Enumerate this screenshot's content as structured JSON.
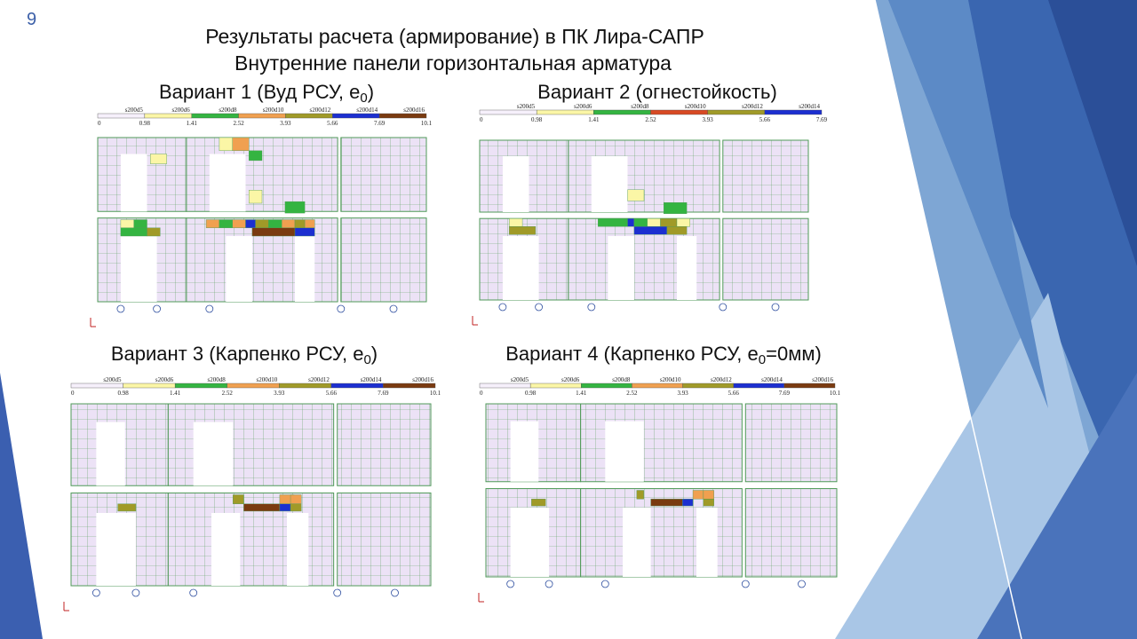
{
  "slide_number": "9",
  "title": [
    "Результаты расчета (армирование) в ПК Лира-САПР",
    "Внутренние панели горизонтальная арматура"
  ],
  "panels": [
    {
      "heading": {
        "text": "Вариант 1 (Вуд РСУ, e",
        "sub": "0",
        "tail": ")"
      },
      "legend": {
        "bars": [
          "s200d5",
          "s200d6",
          "s200d8",
          "s200d10",
          "s200d12",
          "s200d14",
          "s200d16"
        ],
        "values": [
          "0",
          "0.98",
          "1.41",
          "2.52",
          "3.93",
          "5.66",
          "7.69",
          "10.1"
        ],
        "colors": [
          "#f6f0fb",
          "#fbf6a6",
          "#34b441",
          "#f0a050",
          "#a09a28",
          "#1c2fd0",
          "#7a3a10"
        ]
      }
    },
    {
      "heading": {
        "text": "Вариант 2 (огнестойкость)"
      },
      "legend": {
        "bars": [
          "s200d5",
          "s200d6",
          "s200d8",
          "s200d10",
          "s200d12",
          "s200d14"
        ],
        "values": [
          "0",
          "0.98",
          "1.41",
          "2.52",
          "3.93",
          "5.66",
          "7.69"
        ],
        "colors": [
          "#f6f0fb",
          "#fbf6a6",
          "#34b441",
          "#d84a24",
          "#a09a28",
          "#1c2fd0"
        ]
      }
    },
    {
      "heading": {
        "text": "Вариант 3 (Карпенко РСУ, e",
        "sub": "0",
        "tail": ")"
      },
      "legend": {
        "bars": [
          "s200d5",
          "s200d6",
          "s200d8",
          "s200d10",
          "s200d12",
          "s200d14",
          "s200d16"
        ],
        "values": [
          "0",
          "0.98",
          "1.41",
          "2.52",
          "3.93",
          "5.66",
          "7.69",
          "10.1"
        ],
        "colors": [
          "#f6f0fb",
          "#fbf6a6",
          "#34b441",
          "#f0a050",
          "#a09a28",
          "#1c2fd0",
          "#7a3a10"
        ]
      }
    },
    {
      "heading": {
        "text": "Вариант 4 (Карпенко РСУ, e",
        "sub": "0",
        "tail": "=0мм)"
      },
      "legend": {
        "bars": [
          "s200d5",
          "s200d6",
          "s200d8",
          "s200d10",
          "s200d12",
          "s200d14",
          "s200d16"
        ],
        "values": [
          "0",
          "0.98",
          "1.41",
          "2.52",
          "3.93",
          "5.66",
          "7.69",
          "10.1"
        ],
        "colors": [
          "#f6f0fb",
          "#fbf6a6",
          "#34b441",
          "#f0a050",
          "#a09a28",
          "#1c2fd0",
          "#7a3a10"
        ]
      }
    }
  ]
}
